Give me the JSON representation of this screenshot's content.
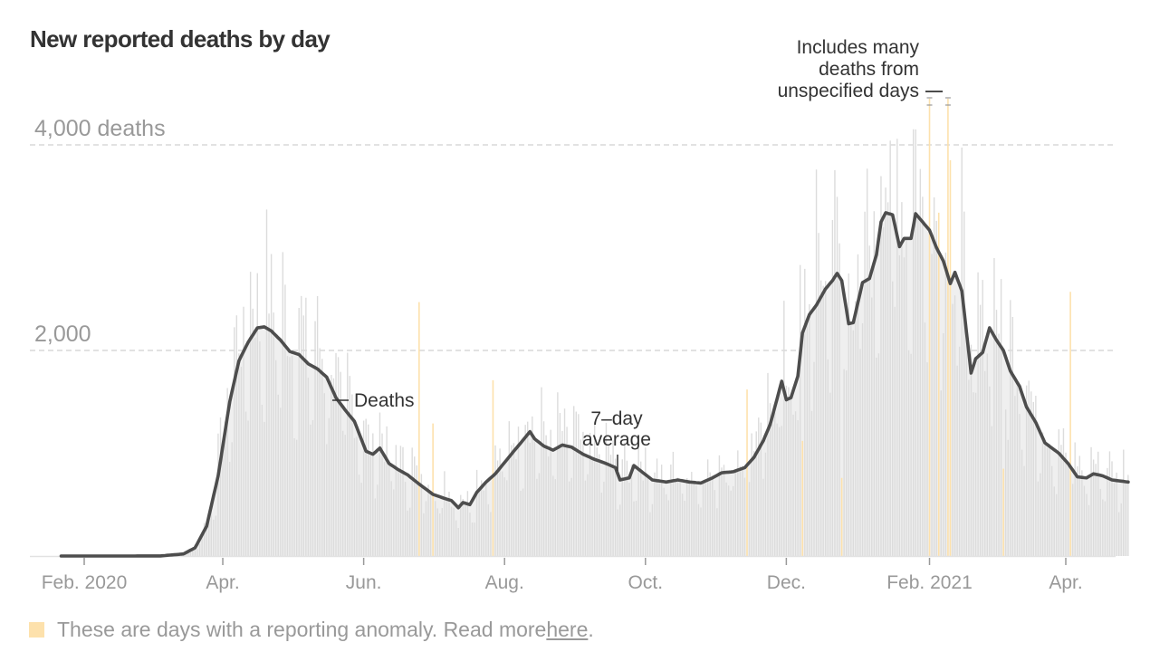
{
  "header": {
    "title": "New reported deaths by day"
  },
  "legend": {
    "text": "These are days with a reporting anomaly. Read more ",
    "link_text": "here",
    "suffix": ".",
    "swatch_color": "#fde1ac"
  },
  "colors": {
    "bar": "#dcdcdc",
    "area": "#efefef",
    "line": "#4d4d4d",
    "anomaly": "#fde1ac",
    "grid": "#d8d8d8",
    "axis_text": "#999999",
    "annotation_text": "#333333"
  },
  "chart_data": {
    "type": "bar",
    "title": "New reported deaths by day",
    "xlabel": "",
    "ylabel": "",
    "ylim": [
      0,
      4000
    ],
    "x_range": [
      "2020-01-22",
      "2021-04-28"
    ],
    "grid": true,
    "y_ticks": [
      {
        "value": 2000,
        "label": "2,000"
      },
      {
        "value": 4000,
        "label": "4,000 deaths"
      }
    ],
    "x_ticks": [
      {
        "date": "2020-02-01",
        "label": "Feb. 2020"
      },
      {
        "date": "2020-04-01",
        "label": "Apr."
      },
      {
        "date": "2020-06-01",
        "label": "Jun."
      },
      {
        "date": "2020-08-01",
        "label": "Aug."
      },
      {
        "date": "2020-10-01",
        "label": "Oct."
      },
      {
        "date": "2020-12-01",
        "label": "Dec."
      },
      {
        "date": "2021-02-01",
        "label": "Feb. 2021"
      },
      {
        "date": "2021-04-01",
        "label": "Apr."
      }
    ],
    "series": [
      {
        "name": "7-day average",
        "type": "line",
        "points": [
          [
            "2020-01-22",
            0
          ],
          [
            "2020-02-15",
            0
          ],
          [
            "2020-03-05",
            1
          ],
          [
            "2020-03-15",
            20
          ],
          [
            "2020-03-20",
            80
          ],
          [
            "2020-03-25",
            290
          ],
          [
            "2020-03-30",
            780
          ],
          [
            "2020-04-04",
            1500
          ],
          [
            "2020-04-08",
            1900
          ],
          [
            "2020-04-12",
            2080
          ],
          [
            "2020-04-16",
            2220
          ],
          [
            "2020-04-19",
            2230
          ],
          [
            "2020-04-22",
            2190
          ],
          [
            "2020-04-26",
            2100
          ],
          [
            "2020-04-30",
            1990
          ],
          [
            "2020-05-04",
            1960
          ],
          [
            "2020-05-08",
            1870
          ],
          [
            "2020-05-12",
            1820
          ],
          [
            "2020-05-16",
            1740
          ],
          [
            "2020-05-20",
            1540
          ],
          [
            "2020-05-24",
            1420
          ],
          [
            "2020-05-28",
            1310
          ],
          [
            "2020-06-02",
            1020
          ],
          [
            "2020-06-05",
            990
          ],
          [
            "2020-06-08",
            1050
          ],
          [
            "2020-06-12",
            900
          ],
          [
            "2020-06-16",
            840
          ],
          [
            "2020-06-20",
            790
          ],
          [
            "2020-06-25",
            700
          ],
          [
            "2020-07-01",
            600
          ],
          [
            "2020-07-06",
            560
          ],
          [
            "2020-07-09",
            540
          ],
          [
            "2020-07-12",
            470
          ],
          [
            "2020-07-14",
            520
          ],
          [
            "2020-07-17",
            500
          ],
          [
            "2020-07-20",
            620
          ],
          [
            "2020-07-24",
            720
          ],
          [
            "2020-07-28",
            800
          ],
          [
            "2020-08-01",
            910
          ],
          [
            "2020-08-05",
            1020
          ],
          [
            "2020-08-08",
            1100
          ],
          [
            "2020-08-12",
            1210
          ],
          [
            "2020-08-14",
            1140
          ],
          [
            "2020-08-18",
            1070
          ],
          [
            "2020-08-22",
            1030
          ],
          [
            "2020-08-26",
            1080
          ],
          [
            "2020-08-30",
            1060
          ],
          [
            "2020-09-04",
            990
          ],
          [
            "2020-09-09",
            940
          ],
          [
            "2020-09-14",
            900
          ],
          [
            "2020-09-18",
            860
          ],
          [
            "2020-09-20",
            740
          ],
          [
            "2020-09-24",
            760
          ],
          [
            "2020-09-26",
            880
          ],
          [
            "2020-09-30",
            810
          ],
          [
            "2020-10-04",
            740
          ],
          [
            "2020-10-10",
            720
          ],
          [
            "2020-10-15",
            740
          ],
          [
            "2020-10-20",
            720
          ],
          [
            "2020-10-25",
            710
          ],
          [
            "2020-10-30",
            760
          ],
          [
            "2020-11-03",
            810
          ],
          [
            "2020-11-08",
            820
          ],
          [
            "2020-11-13",
            860
          ],
          [
            "2020-11-17",
            960
          ],
          [
            "2020-11-21",
            1120
          ],
          [
            "2020-11-24",
            1280
          ],
          [
            "2020-11-27",
            1530
          ],
          [
            "2020-11-29",
            1700
          ],
          [
            "2020-12-01",
            1520
          ],
          [
            "2020-12-03",
            1540
          ],
          [
            "2020-12-06",
            1750
          ],
          [
            "2020-12-08",
            2170
          ],
          [
            "2020-12-11",
            2350
          ],
          [
            "2020-12-14",
            2440
          ],
          [
            "2020-12-18",
            2600
          ],
          [
            "2020-12-21",
            2680
          ],
          [
            "2020-12-23",
            2750
          ],
          [
            "2020-12-25",
            2680
          ],
          [
            "2020-12-28",
            2260
          ],
          [
            "2020-12-30",
            2270
          ],
          [
            "2021-01-03",
            2660
          ],
          [
            "2021-01-06",
            2700
          ],
          [
            "2021-01-09",
            2930
          ],
          [
            "2021-01-11",
            3250
          ],
          [
            "2021-01-13",
            3340
          ],
          [
            "2021-01-16",
            3320
          ],
          [
            "2021-01-19",
            3010
          ],
          [
            "2021-01-21",
            3090
          ],
          [
            "2021-01-24",
            3090
          ],
          [
            "2021-01-26",
            3330
          ],
          [
            "2021-01-29",
            3250
          ],
          [
            "2021-02-01",
            3170
          ],
          [
            "2021-02-04",
            3000
          ],
          [
            "2021-02-07",
            2870
          ],
          [
            "2021-02-10",
            2650
          ],
          [
            "2021-02-12",
            2760
          ],
          [
            "2021-02-15",
            2580
          ],
          [
            "2021-02-19",
            1780
          ],
          [
            "2021-02-21",
            1920
          ],
          [
            "2021-02-24",
            1980
          ],
          [
            "2021-02-27",
            2220
          ],
          [
            "2021-03-02",
            2100
          ],
          [
            "2021-03-05",
            2000
          ],
          [
            "2021-03-08",
            1800
          ],
          [
            "2021-03-12",
            1650
          ],
          [
            "2021-03-15",
            1450
          ],
          [
            "2021-03-19",
            1300
          ],
          [
            "2021-03-23",
            1100
          ],
          [
            "2021-03-26",
            1050
          ],
          [
            "2021-03-29",
            1000
          ],
          [
            "2021-04-02",
            900
          ],
          [
            "2021-04-06",
            770
          ],
          [
            "2021-04-10",
            760
          ],
          [
            "2021-04-13",
            800
          ],
          [
            "2021-04-17",
            780
          ],
          [
            "2021-04-21",
            740
          ],
          [
            "2021-04-28",
            720
          ]
        ]
      },
      {
        "name": "Deaths",
        "type": "bar",
        "weekday_pattern": [
          0.7,
          1.25,
          1.18,
          1.12,
          1.08,
          0.98,
          0.69
        ],
        "note": "daily values derived from the 7-day average scaled by weekday_pattern"
      }
    ],
    "anomalies": [
      {
        "date": "2020-06-25",
        "value": 2470
      },
      {
        "date": "2020-07-01",
        "value": 1290
      },
      {
        "date": "2020-07-27",
        "value": 1710
      },
      {
        "date": "2020-11-14",
        "value": 1620
      },
      {
        "date": "2020-12-08",
        "value": 1120
      },
      {
        "date": "2020-12-25",
        "value": 760
      },
      {
        "date": "2021-02-01",
        "value": 4450
      },
      {
        "date": "2021-02-05",
        "value": 3340
      },
      {
        "date": "2021-02-09",
        "value": 4450
      },
      {
        "date": "2021-02-10",
        "value": 3850
      },
      {
        "date": "2021-03-05",
        "value": 850
      },
      {
        "date": "2021-04-03",
        "value": 2570
      }
    ],
    "annotations": [
      {
        "label": "Deaths",
        "date": "2020-05-26",
        "value": 1520
      },
      {
        "label": "7–day",
        "label2": "average",
        "date": "2020-09-28",
        "value": 850
      },
      {
        "label": "Includes many",
        "label2": "deaths from",
        "label3": "unspecified days",
        "date": "2021-02-05",
        "value": 4450
      }
    ]
  }
}
